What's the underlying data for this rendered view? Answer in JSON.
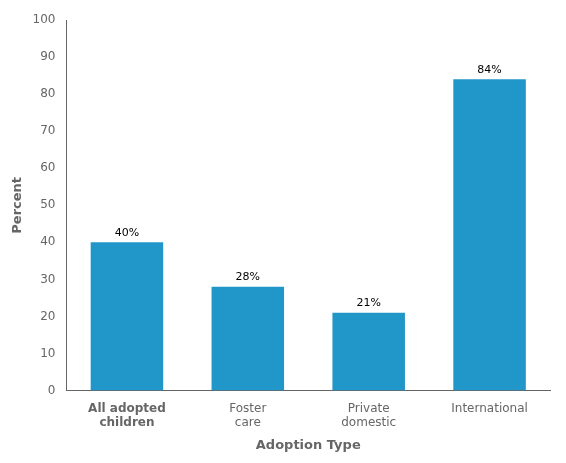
{
  "chart_data": {
    "type": "bar",
    "categories": [
      "All adopted\nchildren",
      "Foster\ncare",
      "Private\ndomestic",
      "International"
    ],
    "values": [
      40,
      28,
      21,
      84
    ],
    "value_labels": [
      "40%",
      "28%",
      "21%",
      "84%"
    ],
    "data_labels": true,
    "color": "#2196C8",
    "xlabel": "Adoption Type",
    "ylabel": "Percent",
    "ylim": [
      0,
      100
    ],
    "yticks": [
      0,
      10,
      20,
      30,
      40,
      50,
      60,
      70,
      80,
      90,
      100
    ],
    "grid": false
  }
}
